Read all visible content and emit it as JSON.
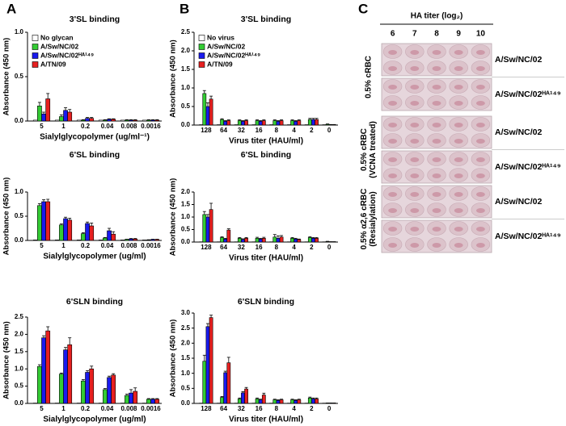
{
  "panel_labels": [
    "A",
    "B",
    "C"
  ],
  "chart_data": [
    {
      "type": "bar",
      "title": "3'SL binding",
      "xlabel": "Sialylglycopolymer (ug/ml⁻¹)",
      "ylabel": "Absorbance (450 nm)",
      "categories": [
        "5",
        "1",
        "0.2",
        "0.04",
        "0.008",
        "0.0016"
      ],
      "series": [
        {
          "name": "No glycan",
          "color": "#ffffff",
          "values": [
            0.01,
            0.01,
            0.01,
            0.01,
            0.01,
            0.01
          ]
        },
        {
          "name": "A/Sw/NC/02",
          "color": "#33cc33",
          "values": [
            0.17,
            0.05,
            0.01,
            0.01,
            0.01,
            0.01
          ],
          "errors": [
            0.04,
            0.02,
            0.005,
            0.005,
            0.005,
            0.005
          ]
        },
        {
          "name": "A/Sw/NC/02ᴴᴬ¹⁴⁹",
          "color": "#1a1aee",
          "values": [
            0.08,
            0.12,
            0.03,
            0.02,
            0.01,
            0.01
          ],
          "errors": [
            0.02,
            0.03,
            0.01,
            0.005,
            0.005,
            0.005
          ]
        },
        {
          "name": "A/TN/09",
          "color": "#e62020",
          "values": [
            0.25,
            0.1,
            0.03,
            0.02,
            0.01,
            0.01
          ],
          "errors": [
            0.06,
            0.03,
            0.01,
            0.005,
            0.005,
            0.005
          ]
        }
      ],
      "ylim": [
        0,
        1
      ],
      "yticks": [
        {
          "value": 0,
          "label": "0.0"
        },
        0.5,
        {
          "value": 1,
          "label": "1.0"
        }
      ],
      "legend": "upper left"
    },
    {
      "type": "bar",
      "title": "6'SL binding",
      "xlabel": "Sialylglycopolymer (ug/ml)",
      "ylabel": "Absorbance (450 nm)",
      "categories": [
        "5",
        "1",
        "0.2",
        "0.04",
        "0.008",
        "0.0016"
      ],
      "series": [
        {
          "name": "No glycan",
          "color": "#ffffff",
          "values": [
            0.01,
            0.01,
            0.01,
            0.01,
            0.01,
            0.01
          ]
        },
        {
          "name": "A/Sw/NC/02",
          "color": "#33cc33",
          "values": [
            0.72,
            0.32,
            0.14,
            0.05,
            0.02,
            0.01
          ],
          "errors": [
            0.04,
            0.02,
            0.02,
            0.01,
            0.005,
            0.005
          ]
        },
        {
          "name": "A/Sw/NC/02ᴴᴬ¹⁴⁹",
          "color": "#1a1aee",
          "values": [
            0.8,
            0.45,
            0.35,
            0.2,
            0.03,
            0.02
          ],
          "errors": [
            0.04,
            0.03,
            0.03,
            0.05,
            0.01,
            0.005
          ]
        },
        {
          "name": "A/TN/09",
          "color": "#e62020",
          "values": [
            0.8,
            0.42,
            0.3,
            0.13,
            0.03,
            0.02
          ],
          "errors": [
            0.05,
            0.04,
            0.06,
            0.05,
            0.01,
            0.005
          ]
        }
      ],
      "ylim": [
        0,
        1
      ],
      "yticks": [
        {
          "value": 0,
          "label": "0.0"
        },
        0.5,
        {
          "value": 1,
          "label": "1.0"
        }
      ],
      "legend": false
    },
    {
      "type": "bar",
      "title": "6'SLN binding",
      "xlabel": "Sialylglycopolymer (ug/ml)",
      "ylabel": "Absorbance (450 nm)",
      "categories": [
        "5",
        "1",
        "0.2",
        "0.04",
        "0.008",
        "0.0016"
      ],
      "series": [
        {
          "name": "No glycan",
          "color": "#ffffff",
          "values": [
            0.01,
            0.01,
            0.01,
            0.01,
            0.01,
            0.01
          ]
        },
        {
          "name": "A/Sw/NC/02",
          "color": "#33cc33",
          "values": [
            1.07,
            0.85,
            0.65,
            0.4,
            0.23,
            0.12
          ],
          "errors": [
            0.05,
            0.03,
            0.04,
            0.03,
            0.04,
            0.02
          ]
        },
        {
          "name": "A/Sw/NC/02ᴴᴬ¹⁴⁹",
          "color": "#1a1aee",
          "values": [
            1.9,
            1.55,
            0.9,
            0.75,
            0.3,
            0.12
          ],
          "errors": [
            0.06,
            0.07,
            0.05,
            0.04,
            0.1,
            0.02
          ]
        },
        {
          "name": "A/TN/09",
          "color": "#e62020",
          "values": [
            2.1,
            1.7,
            1.0,
            0.82,
            0.35,
            0.12
          ],
          "errors": [
            0.12,
            0.2,
            0.08,
            0.04,
            0.1,
            0.02
          ]
        }
      ],
      "ylim": [
        0,
        2.5
      ],
      "yticks": [
        {
          "value": 0,
          "label": "0.0"
        },
        0.5,
        {
          "value": 1,
          "label": "1.0"
        },
        1.5,
        {
          "value": 2,
          "label": "2.0"
        },
        2.5
      ],
      "legend": false
    },
    {
      "type": "bar",
      "title": "3'SL binding",
      "xlabel": "Virus titer (HAU/ml)",
      "ylabel": "Absorbance (450 nm)",
      "categories": [
        "128",
        "64",
        "32",
        "16",
        "8",
        "4",
        "2",
        "0"
      ],
      "series": [
        {
          "name": "No virus",
          "color": "#ffffff",
          "values": [
            0.01,
            0.01,
            0.01,
            0.01,
            0.01,
            0.01,
            0.01,
            0.01
          ]
        },
        {
          "name": "A/Sw/NC/02",
          "color": "#33cc33",
          "values": [
            0.85,
            0.15,
            0.12,
            0.12,
            0.12,
            0.12,
            0.15,
            0.02
          ],
          "errors": [
            0.08,
            0.02,
            0.02,
            0.02,
            0.02,
            0.02,
            0.03,
            0.01
          ]
        },
        {
          "name": "A/Sw/NC/02ᴴᴬ¹⁴⁹",
          "color": "#1a1aee",
          "values": [
            0.5,
            0.1,
            0.1,
            0.1,
            0.1,
            0.1,
            0.15,
            0.01
          ],
          "errors": [
            0.1,
            0.02,
            0.02,
            0.02,
            0.02,
            0.02,
            0.03,
            0.005
          ]
        },
        {
          "name": "A/TN/09",
          "color": "#e62020",
          "values": [
            0.7,
            0.12,
            0.12,
            0.12,
            0.12,
            0.12,
            0.15,
            0.01
          ],
          "errors": [
            0.08,
            0.02,
            0.02,
            0.02,
            0.02,
            0.02,
            0.03,
            0.005
          ]
        }
      ],
      "ylim": [
        0,
        2.5
      ],
      "yticks": [
        {
          "value": 0,
          "label": "0.0"
        },
        0.5,
        {
          "value": 1,
          "label": "1.0"
        },
        1.5,
        {
          "value": 2,
          "label": "2.0"
        },
        2.5
      ],
      "legend": "upper left"
    },
    {
      "type": "bar",
      "title": "6'SL binding",
      "xlabel": "Virus titer (HAU/ml)",
      "ylabel": "Absorbance (450 nm)",
      "categories": [
        "128",
        "64",
        "32",
        "16",
        "8",
        "4",
        "2",
        "0"
      ],
      "series": [
        {
          "name": "No virus",
          "color": "#ffffff",
          "values": [
            0.01,
            0.01,
            0.01,
            0.01,
            0.01,
            0.01,
            0.01,
            0.01
          ]
        },
        {
          "name": "A/Sw/NC/02",
          "color": "#33cc33",
          "values": [
            1.1,
            0.18,
            0.15,
            0.15,
            0.2,
            0.15,
            0.18,
            0.02
          ],
          "errors": [
            0.12,
            0.03,
            0.03,
            0.04,
            0.1,
            0.03,
            0.03,
            0.01
          ]
        },
        {
          "name": "A/Sw/NC/02ᴴᴬ¹⁴⁹",
          "color": "#1a1aee",
          "values": [
            1.0,
            0.12,
            0.1,
            0.12,
            0.15,
            0.12,
            0.15,
            0.01
          ],
          "errors": [
            0.1,
            0.03,
            0.03,
            0.03,
            0.1,
            0.03,
            0.03,
            0.005
          ]
        },
        {
          "name": "A/TN/09",
          "color": "#e62020",
          "values": [
            1.3,
            0.48,
            0.15,
            0.15,
            0.2,
            0.1,
            0.15,
            0.01
          ],
          "errors": [
            0.25,
            0.05,
            0.03,
            0.04,
            0.06,
            0.02,
            0.03,
            0.005
          ]
        }
      ],
      "ylim": [
        0,
        2
      ],
      "yticks": [
        {
          "value": 0,
          "label": "0.0"
        },
        0.5,
        {
          "value": 1,
          "label": "1.0"
        },
        1.5,
        {
          "value": 2,
          "label": "2.0"
        }
      ],
      "legend": false
    },
    {
      "type": "bar",
      "title": "6'SLN binding",
      "xlabel": "Virus titer (HAU/ml)",
      "ylabel": "Absorbance (450 nm)",
      "categories": [
        "128",
        "64",
        "32",
        "16",
        "8",
        "4",
        "2",
        "0"
      ],
      "series": [
        {
          "name": "No virus",
          "color": "#ffffff",
          "values": [
            0.01,
            0.01,
            0.01,
            0.01,
            0.01,
            0.01,
            0.01,
            0.01
          ]
        },
        {
          "name": "A/Sw/NC/02",
          "color": "#33cc33",
          "values": [
            1.4,
            0.2,
            0.15,
            0.15,
            0.12,
            0.12,
            0.18,
            0.01
          ],
          "errors": [
            0.2,
            0.03,
            0.03,
            0.03,
            0.02,
            0.02,
            0.03,
            0.005
          ]
        },
        {
          "name": "A/Sw/NC/02ᴴᴬ¹⁴⁹",
          "color": "#1a1aee",
          "values": [
            2.55,
            1.02,
            0.35,
            0.12,
            0.1,
            0.1,
            0.15,
            0.01
          ],
          "errors": [
            0.1,
            0.05,
            0.04,
            0.02,
            0.02,
            0.02,
            0.03,
            0.005
          ]
        },
        {
          "name": "A/TN/09",
          "color": "#e62020",
          "values": [
            2.85,
            1.35,
            0.48,
            0.28,
            0.12,
            0.12,
            0.15,
            0.01
          ],
          "errors": [
            0.08,
            0.18,
            0.05,
            0.06,
            0.02,
            0.02,
            0.03,
            0.005
          ]
        }
      ],
      "ylim": [
        0,
        3
      ],
      "yticks": [
        {
          "value": 0,
          "label": "0.0"
        },
        0.5,
        {
          "value": 1,
          "label": "1.0"
        },
        1.5,
        {
          "value": 2,
          "label": "2.0"
        },
        2.5,
        {
          "value": 3,
          "label": "3.0"
        }
      ],
      "legend": false
    }
  ],
  "hemagglutination": {
    "title": "HA titer (log₂)",
    "columns": [
      6,
      7,
      8,
      9,
      10
    ],
    "groups": [
      {
        "label_lines": [
          "0.5% cRBC"
        ],
        "rows": [
          "A/Sw/NC/02",
          "A/Sw/NC/02ᴴᴬ¹⁴⁹"
        ]
      },
      {
        "label_lines": [
          "0.5% cRBC",
          "(VCNA treated)"
        ],
        "rows": [
          "A/Sw/NC/02",
          "A/Sw/NC/02ᴴᴬ¹⁴⁹"
        ]
      },
      {
        "label_lines": [
          "0.5% α2,6 cRBC",
          "(Resialylation)"
        ],
        "rows": [
          "A/Sw/NC/02",
          "A/Sw/NC/02ᴴᴬ¹⁴⁹"
        ]
      }
    ]
  }
}
